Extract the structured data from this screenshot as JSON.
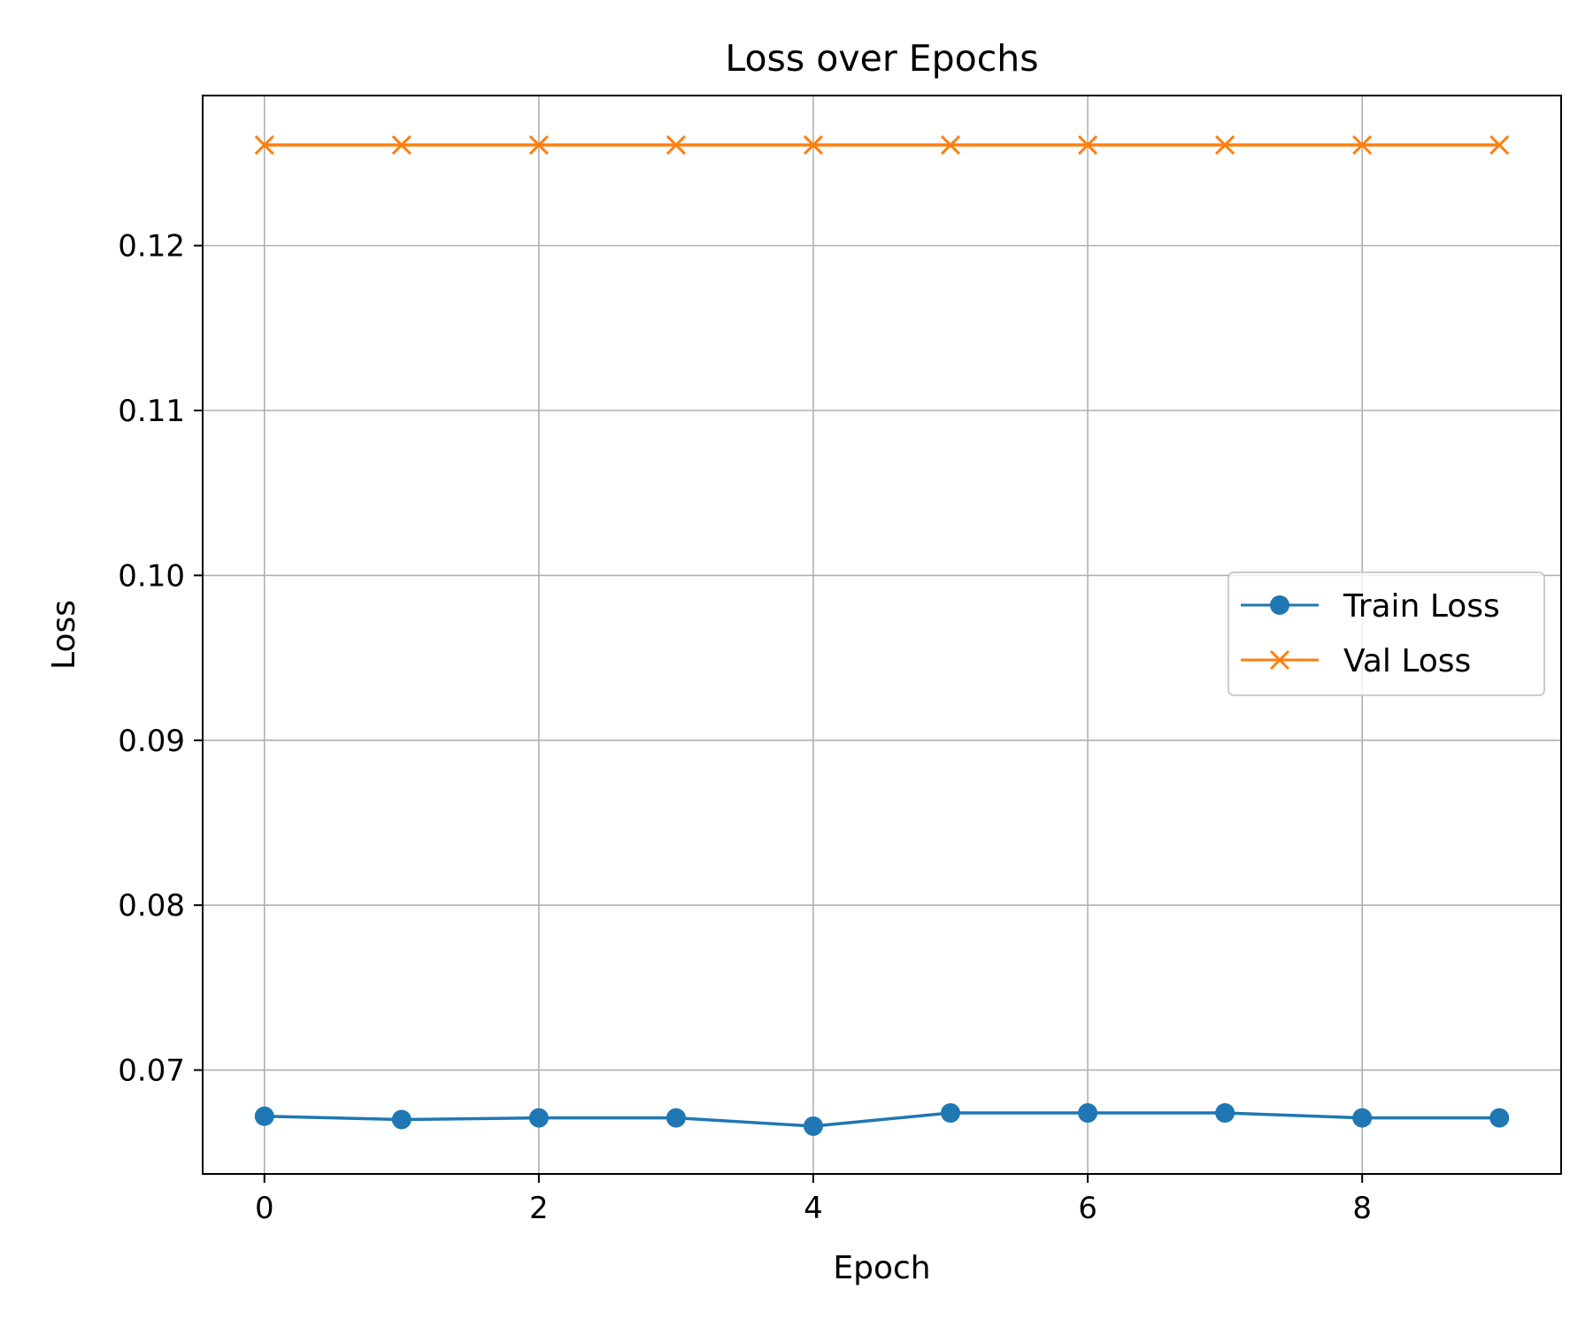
{
  "chart_data": {
    "type": "line",
    "title": "Loss over Epochs",
    "xlabel": "Epoch",
    "ylabel": "Loss",
    "x": [
      0,
      1,
      2,
      3,
      4,
      5,
      6,
      7,
      8,
      9
    ],
    "xlim": [
      -0.45,
      9.45
    ],
    "ylim": [
      0.0637,
      0.1291
    ],
    "xticks": [
      0,
      2,
      4,
      6,
      8
    ],
    "xtick_labels": [
      "0",
      "2",
      "4",
      "6",
      "8"
    ],
    "yticks": [
      0.07,
      0.08,
      0.09,
      0.1,
      0.11,
      0.12
    ],
    "ytick_labels": [
      "0.07",
      "0.08",
      "0.09",
      "0.10",
      "0.11",
      "0.12"
    ],
    "grid": true,
    "legend_position": "center-right",
    "series": [
      {
        "name": "Train Loss",
        "color": "#1f77b4",
        "marker": "circle",
        "values": [
          0.0672,
          0.067,
          0.0671,
          0.0671,
          0.0666,
          0.0674,
          0.0674,
          0.0674,
          0.0671,
          0.0671
        ]
      },
      {
        "name": "Val Loss",
        "color": "#ff7f0e",
        "marker": "x",
        "values": [
          0.1261,
          0.1261,
          0.1261,
          0.1261,
          0.1261,
          0.1261,
          0.1261,
          0.1261,
          0.1261,
          0.1261
        ]
      }
    ]
  }
}
